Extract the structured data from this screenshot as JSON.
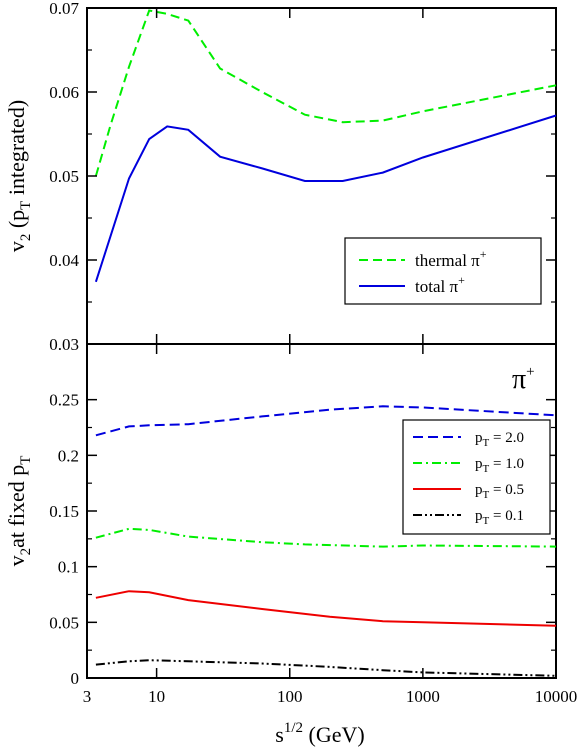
{
  "chart_data": [
    {
      "id": "top",
      "type": "line",
      "xscale": "log",
      "xlim": [
        3,
        10000
      ],
      "ylim": [
        0.03,
        0.07
      ],
      "yticks": [
        0.03,
        0.04,
        0.05,
        0.06,
        0.07
      ],
      "ytick_labels": [
        "0.03",
        "0.04",
        "0.05",
        "0.06",
        "0.07"
      ],
      "ylabel": {
        "main": "v",
        "sub1": "2",
        "mid": " (p",
        "sub2": "T",
        "end": " integrated)"
      },
      "series": [
        {
          "key": "thermal",
          "name_main": "thermal π",
          "name_sup": "+",
          "color": "#00ee00",
          "dash": "9,5",
          "x": [
            3.5,
            4.5,
            6.2,
            8.8,
            12.0,
            17.3,
            30,
            62,
            130,
            250,
            500,
            1000,
            10000
          ],
          "y": [
            0.05,
            0.056,
            0.063,
            0.0697,
            0.0693,
            0.0685,
            0.0628,
            0.06,
            0.0573,
            0.0564,
            0.0566,
            0.0577,
            0.0608
          ]
        },
        {
          "key": "total",
          "name_main": "total π",
          "name_sup": "+",
          "color": "#0000dd",
          "dash": "",
          "x": [
            3.5,
            6.2,
            8.8,
            12.0,
            17.3,
            30,
            62,
            130,
            250,
            500,
            1000,
            10000
          ],
          "y": [
            0.0374,
            0.0497,
            0.0544,
            0.0559,
            0.0555,
            0.0523,
            0.0509,
            0.0494,
            0.0494,
            0.0504,
            0.0522,
            0.0572
          ]
        }
      ]
    },
    {
      "id": "bottom",
      "type": "line",
      "xscale": "log",
      "xlim": [
        3,
        10000
      ],
      "ylim": [
        0,
        0.3
      ],
      "yticks": [
        0,
        0.05,
        0.1,
        0.15,
        0.2,
        0.25
      ],
      "ytick_labels": [
        "0",
        "0.05",
        "0.1",
        "0.15",
        "0.2",
        "0.25"
      ],
      "xticks": [
        3,
        10,
        100,
        1000,
        10000
      ],
      "xtick_labels": [
        "3",
        "10",
        "100",
        "1000",
        "10000"
      ],
      "xlabel": {
        "main": "s",
        "sup": "1/2",
        "end": " (GeV)"
      },
      "ylabel": {
        "main": "v",
        "sub1": "2",
        "mid": "at fixed p",
        "sub2": "T"
      },
      "annotation": {
        "main": "π",
        "sup": "+"
      },
      "series": [
        {
          "key": "pt20",
          "name_main": "p",
          "name_sub": "T",
          "name_end": " = 2.0",
          "color": "#0000dd",
          "dash": "10,5",
          "x": [
            3.5,
            6.2,
            8.8,
            17.3,
            62,
            200,
            500,
            1000,
            10000
          ],
          "y": [
            0.218,
            0.226,
            0.227,
            0.228,
            0.235,
            0.241,
            0.244,
            0.243,
            0.236
          ]
        },
        {
          "key": "pt10",
          "name_main": "p",
          "name_sub": "T",
          "name_end": " = 1.0",
          "color": "#00ee00",
          "dash": "9,4,2,4",
          "x": [
            3.5,
            6.2,
            8.8,
            17.3,
            62,
            130,
            500,
            1000,
            10000
          ],
          "y": [
            0.126,
            0.134,
            0.133,
            0.127,
            0.122,
            0.12,
            0.118,
            0.119,
            0.118
          ]
        },
        {
          "key": "pt05",
          "name_main": "p",
          "name_sub": "T",
          "name_end": " = 0.5",
          "color": "#ee0000",
          "dash": "",
          "x": [
            3.5,
            6.2,
            8.8,
            17.3,
            62,
            200,
            500,
            1000,
            10000
          ],
          "y": [
            0.072,
            0.078,
            0.077,
            0.07,
            0.062,
            0.055,
            0.051,
            0.05,
            0.047
          ]
        },
        {
          "key": "pt01",
          "name_main": "p",
          "name_sub": "T",
          "name_end": " = 0.1",
          "color": "#000000",
          "dash": "9,3,2,3,2,3",
          "x": [
            3.5,
            6.2,
            8.8,
            17.3,
            62,
            200,
            500,
            1000,
            10000
          ],
          "y": [
            0.012,
            0.015,
            0.016,
            0.015,
            0.013,
            0.01,
            0.007,
            0.005,
            0.002
          ]
        }
      ]
    }
  ]
}
